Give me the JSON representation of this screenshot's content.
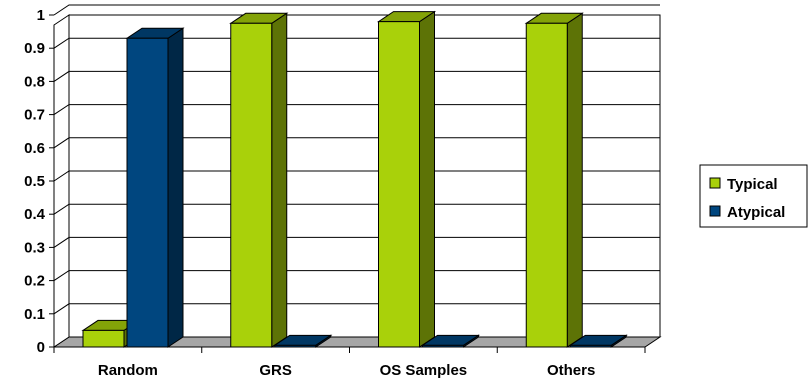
{
  "chart_data": {
    "type": "bar",
    "categories": [
      "Random",
      "GRS",
      "OS Samples",
      "Others"
    ],
    "series": [
      {
        "name": "Typical",
        "values": [
          0.05,
          0.975,
          0.98,
          0.975
        ],
        "color": "#a9d10a"
      },
      {
        "name": "Atypical",
        "values": [
          0.93,
          0.005,
          0.005,
          0.005
        ],
        "color": "#00467f"
      }
    ],
    "yticks": [
      "0",
      "0.1",
      "0.2",
      "0.3",
      "0.4",
      "0.5",
      "0.6",
      "0.7",
      "0.8",
      "0.9",
      "1"
    ],
    "ylim": [
      0,
      1
    ],
    "grid": true,
    "legend": "right",
    "three_d": true,
    "floor_color": "#a6a6a6"
  }
}
